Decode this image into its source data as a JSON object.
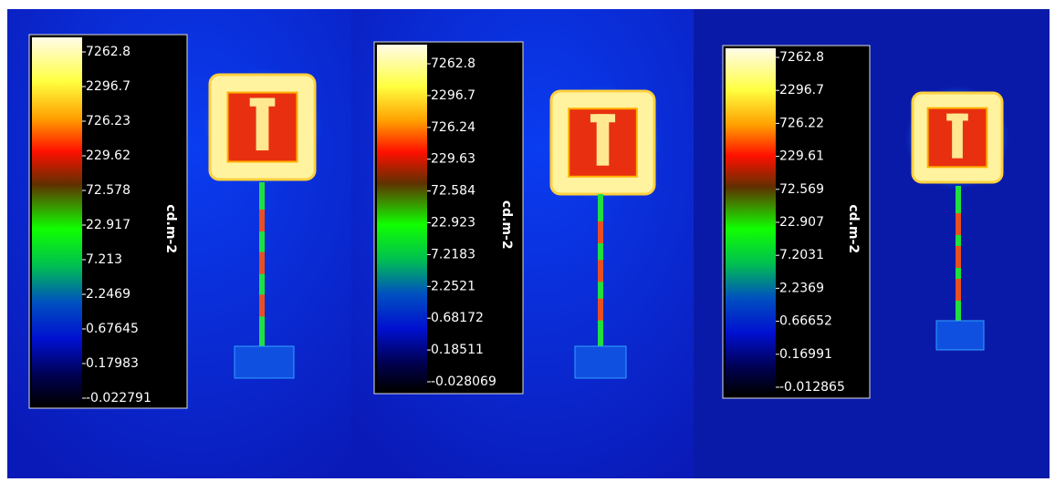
{
  "panels": [
    {
      "scale_labels": [
        "7262.8",
        "2296.7",
        "726.23",
        "229.62",
        "72.578",
        "22.917",
        "7.213",
        "2.2469",
        "0.67645",
        "0.17983",
        "-0.022791"
      ],
      "unit": "cd.m-2"
    },
    {
      "scale_labels": [
        "7262.8",
        "2296.7",
        "726.24",
        "229.63",
        "72.584",
        "22.923",
        "7.2183",
        "2.2521",
        "0.68172",
        "0.18511",
        "-0.028069"
      ],
      "unit": "cd.m-2"
    },
    {
      "scale_labels": [
        "7262.8",
        "2296.7",
        "726.22",
        "229.61",
        "72.569",
        "22.907",
        "7.2031",
        "2.2369",
        "0.66652",
        "0.16991",
        "-0.012865"
      ],
      "unit": "cd.m-2"
    }
  ]
}
